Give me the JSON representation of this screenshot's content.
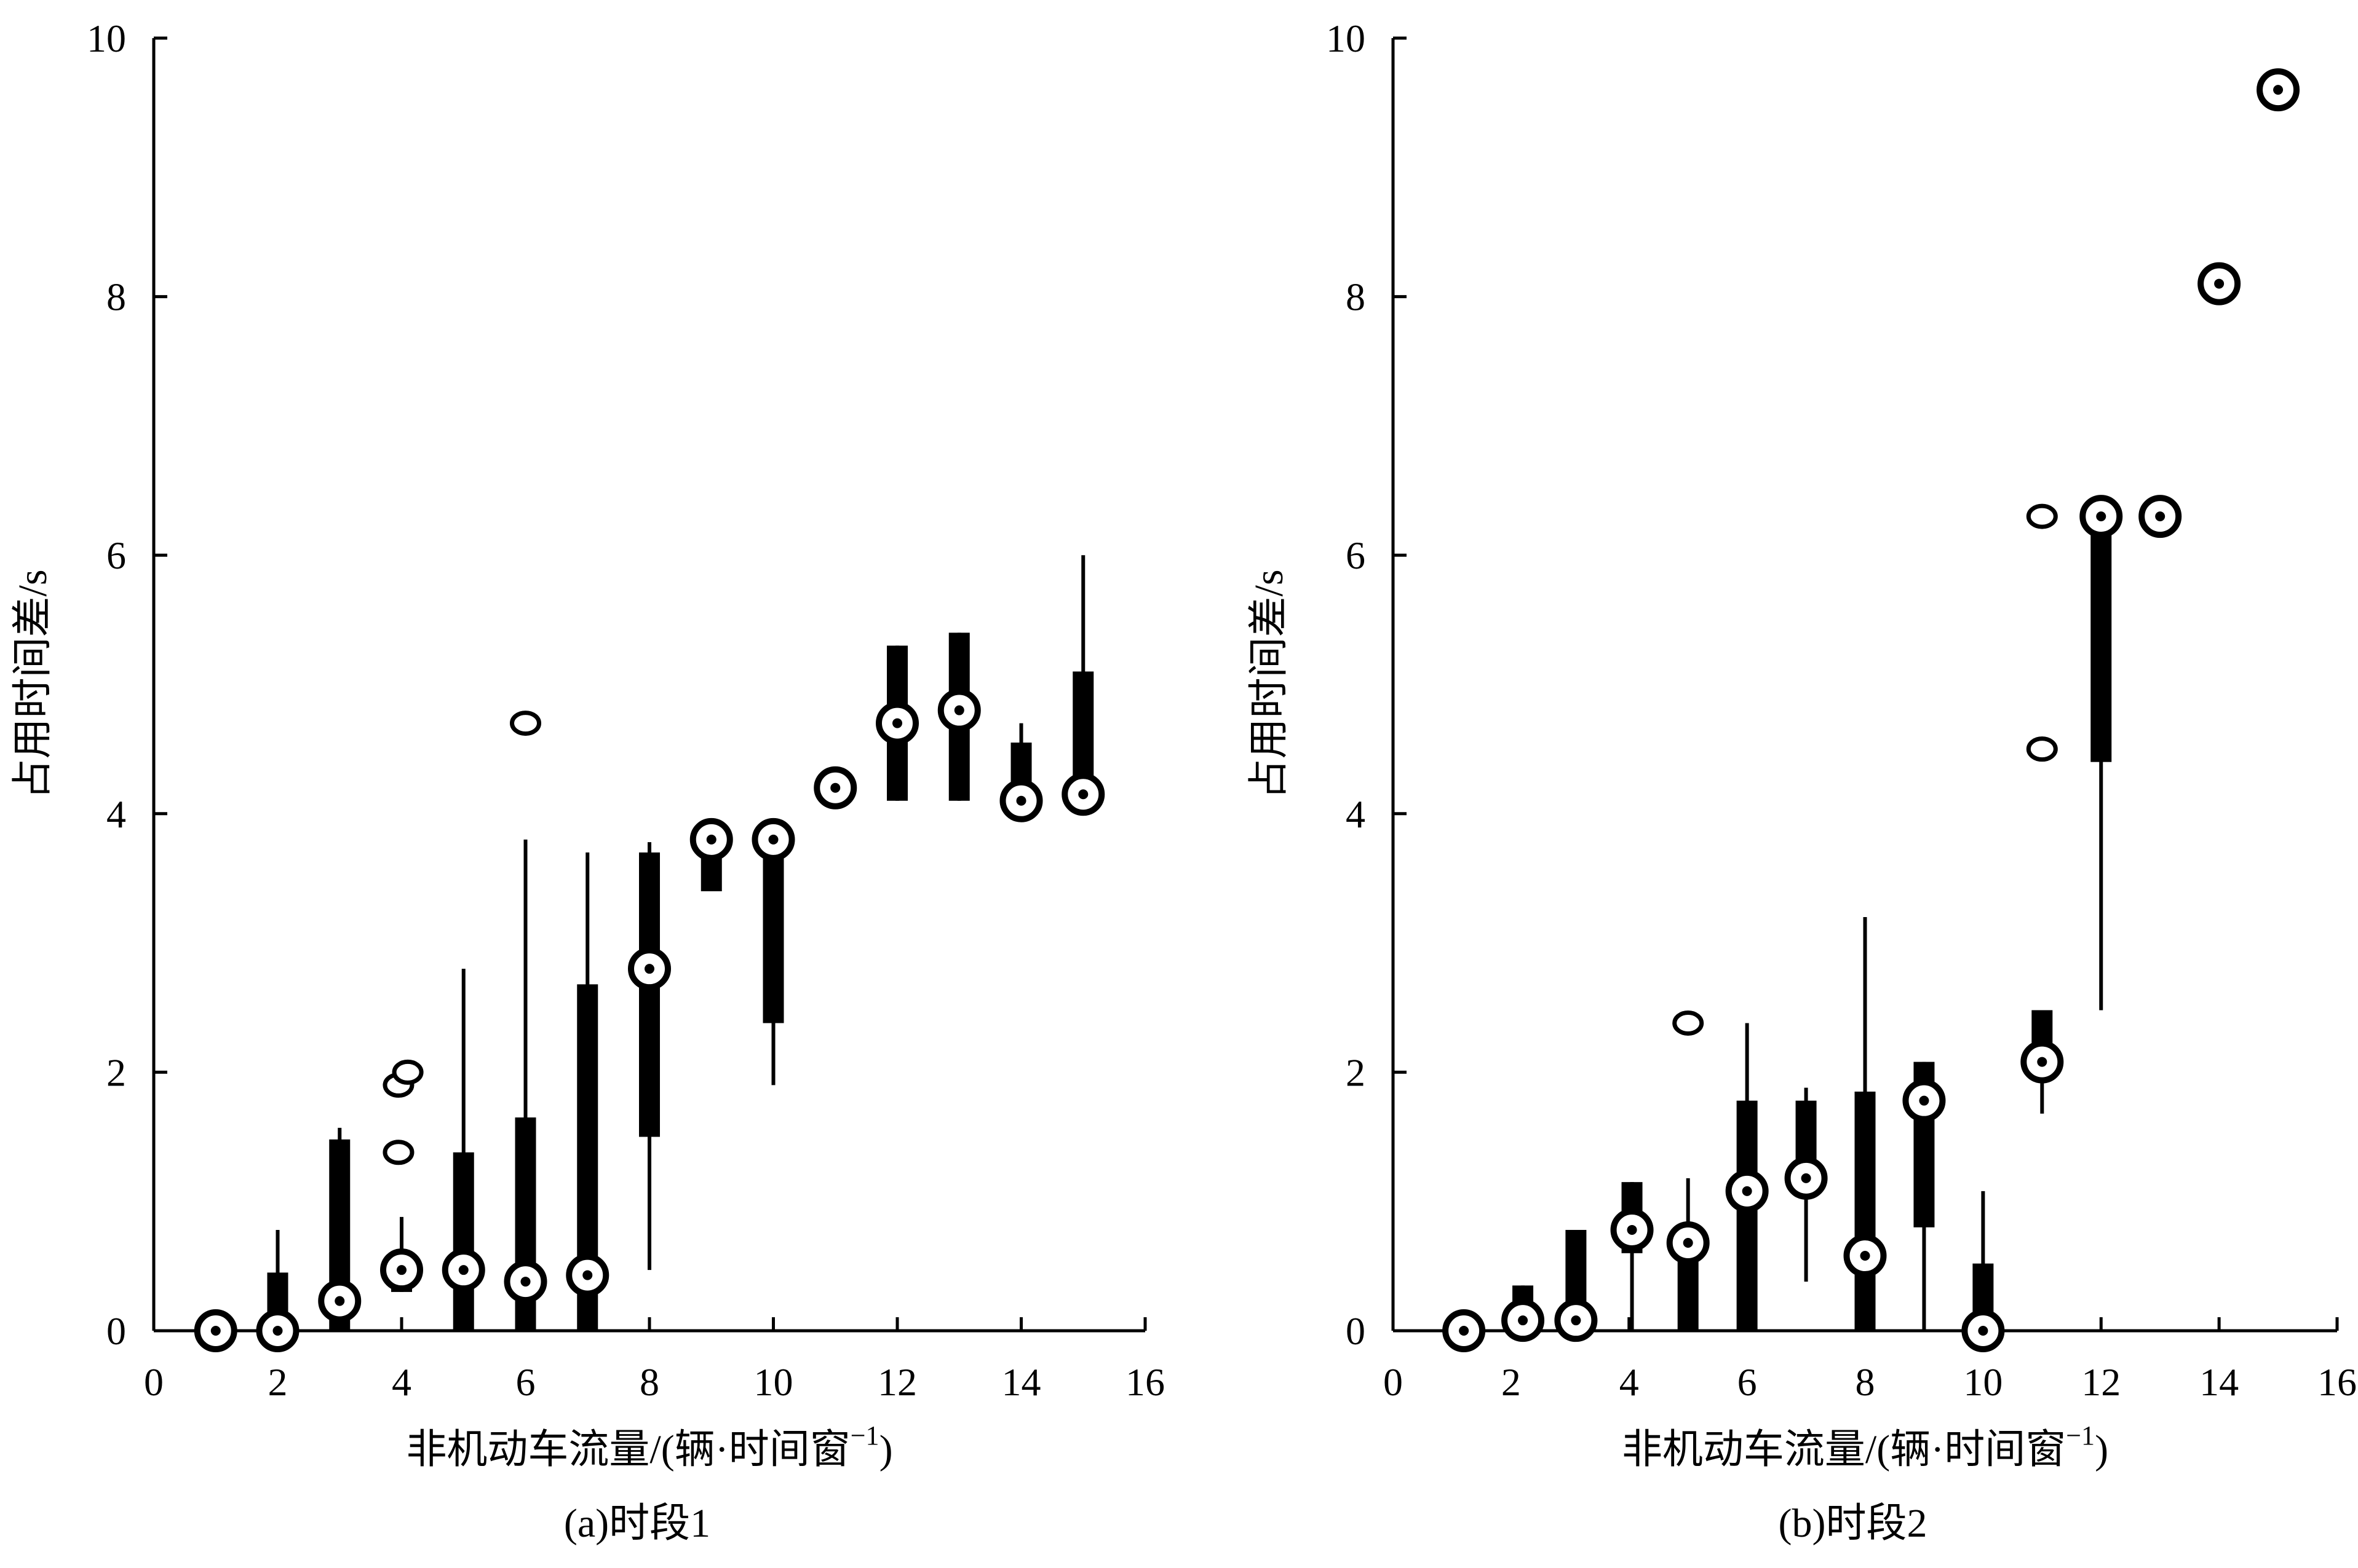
{
  "chart_data": [
    {
      "type": "box",
      "caption": "(a)时段1",
      "xlabel": "非机动车流量/(辆·时间窗",
      "xlabel_sup": "−1",
      "xlabel_close": ")",
      "ylabel": "占用时间差/s",
      "xlim": [
        0,
        16
      ],
      "ylim": [
        0,
        10
      ],
      "xticks": [
        0,
        2,
        4,
        6,
        8,
        10,
        12,
        14,
        16
      ],
      "yticks": [
        0,
        2,
        4,
        6,
        8,
        10
      ],
      "boxes": [
        {
          "x": 2,
          "whisker_low": 0,
          "box_low": 0,
          "box_high": 0.45,
          "whisker_high": 0.78,
          "median": 0
        },
        {
          "x": 3,
          "whisker_low": 0,
          "box_low": 0,
          "box_high": 1.48,
          "whisker_high": 1.57,
          "median": 0.23
        },
        {
          "x": 4,
          "whisker_low": 0.3,
          "box_low": 0.3,
          "box_high": 0.55,
          "whisker_high": 0.88,
          "median": 0.47
        },
        {
          "x": 5,
          "whisker_low": 0,
          "box_low": 0,
          "box_high": 1.38,
          "whisker_high": 2.8,
          "median": 0.47
        },
        {
          "x": 6,
          "whisker_low": 0,
          "box_low": 0,
          "box_high": 1.65,
          "whisker_high": 3.8,
          "median": 0.38
        },
        {
          "x": 7,
          "whisker_low": 0,
          "box_low": 0,
          "box_high": 2.68,
          "whisker_high": 3.7,
          "median": 0.43
        },
        {
          "x": 8,
          "whisker_low": 0.47,
          "box_low": 1.5,
          "box_high": 3.7,
          "whisker_high": 3.78,
          "median": 2.8
        },
        {
          "x": 9,
          "whisker_low": 3.4,
          "box_low": 3.4,
          "box_high": 3.8,
          "whisker_high": 3.8,
          "median": 3.8
        },
        {
          "x": 10,
          "whisker_low": 1.9,
          "box_low": 2.38,
          "box_high": 3.8,
          "whisker_high": 3.8,
          "median": 3.8
        },
        {
          "x": 12,
          "whisker_low": 4.1,
          "box_low": 4.1,
          "box_high": 5.3,
          "whisker_high": 5.3,
          "median": 4.7
        },
        {
          "x": 13,
          "whisker_low": 4.1,
          "box_low": 4.1,
          "box_high": 5.4,
          "whisker_high": 5.4,
          "median": 4.8
        },
        {
          "x": 14,
          "whisker_low": 4.1,
          "box_low": 4.1,
          "box_high": 4.55,
          "whisker_high": 4.7,
          "median": 4.1
        },
        {
          "x": 15,
          "whisker_low": 4.15,
          "box_low": 4.15,
          "box_high": 5.1,
          "whisker_high": 6.0,
          "median": 4.15
        }
      ],
      "medians_only": [
        {
          "x": 1,
          "y": 0
        },
        {
          "x": 11,
          "y": 4.2
        }
      ],
      "outliers": [
        {
          "x": 3.95,
          "y": 1.9
        },
        {
          "x": 4.1,
          "y": 2.0
        },
        {
          "x": 3.95,
          "y": 1.38
        },
        {
          "x": 6,
          "y": 4.7
        }
      ]
    },
    {
      "type": "box",
      "caption": "(b)时段2",
      "xlabel": "非机动车流量/(辆·时间窗",
      "xlabel_sup": "−1",
      "xlabel_close": ")",
      "ylabel": "占用时间差/s",
      "xlim": [
        0,
        16
      ],
      "ylim": [
        0,
        10
      ],
      "xticks": [
        0,
        2,
        4,
        6,
        8,
        10,
        12,
        14,
        16
      ],
      "yticks": [
        0,
        2,
        4,
        6,
        8,
        10
      ],
      "boxes": [
        {
          "x": 2.2,
          "whisker_low": 0.08,
          "box_low": 0.08,
          "box_high": 0.35,
          "whisker_high": 0.35,
          "median": 0.08
        },
        {
          "x": 3.1,
          "whisker_low": 0,
          "box_low": 0,
          "box_high": 0.78,
          "whisker_high": 0.78,
          "median": 0.08
        },
        {
          "x": 4.05,
          "whisker_low": 0,
          "box_low": 0.6,
          "box_high": 1.15,
          "whisker_high": 1.15,
          "median": 0.78
        },
        {
          "x": 5,
          "whisker_low": 0,
          "box_low": 0,
          "box_high": 0.7,
          "whisker_high": 1.18,
          "median": 0.68
        },
        {
          "x": 6,
          "whisker_low": 0,
          "box_low": 0,
          "box_high": 1.78,
          "whisker_high": 2.38,
          "median": 1.08
        },
        {
          "x": 7,
          "whisker_low": 0.38,
          "box_low": 1.1,
          "box_high": 1.78,
          "whisker_high": 1.88,
          "median": 1.18
        },
        {
          "x": 8,
          "whisker_low": 0,
          "box_low": 0,
          "box_high": 1.85,
          "whisker_high": 3.2,
          "median": 0.58
        },
        {
          "x": 9,
          "whisker_low": 0,
          "box_low": 0.8,
          "box_high": 2.08,
          "whisker_high": 2.08,
          "median": 1.78
        },
        {
          "x": 10,
          "whisker_low": 0,
          "box_low": 0,
          "box_high": 0.52,
          "whisker_high": 1.08,
          "median": 0
        },
        {
          "x": 11,
          "whisker_low": 1.68,
          "box_low": 2.08,
          "box_high": 2.48,
          "whisker_high": 2.48,
          "median": 2.08
        },
        {
          "x": 12,
          "whisker_low": 2.48,
          "box_low": 4.4,
          "box_high": 6.3,
          "whisker_high": 6.3,
          "median": 6.3
        }
      ],
      "medians_only": [
        {
          "x": 1.2,
          "y": 0
        },
        {
          "x": 13,
          "y": 6.3
        },
        {
          "x": 14,
          "y": 8.1
        },
        {
          "x": 15,
          "y": 9.6
        }
      ],
      "outliers": [
        {
          "x": 5,
          "y": 2.38
        },
        {
          "x": 11,
          "y": 6.3
        },
        {
          "x": 11,
          "y": 4.5
        }
      ]
    }
  ]
}
